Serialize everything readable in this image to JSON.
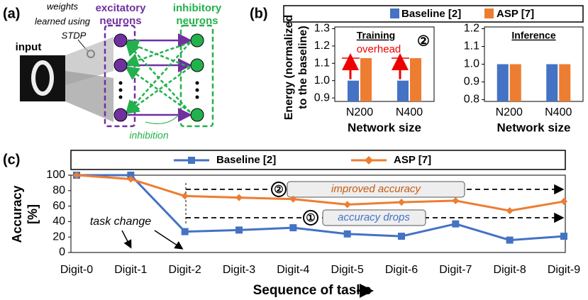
{
  "panel_labels": [
    "(a)",
    "(b)",
    "(c)"
  ],
  "diagram": {
    "weights_note": [
      "weights",
      "learned using",
      "STDP"
    ],
    "input": "input",
    "excitatory": [
      "excitatory",
      "neurons"
    ],
    "inhibitory": [
      "inhibitory",
      "neurons"
    ],
    "inhibition": "inhibition"
  },
  "chart_data": [
    {
      "type": "bar",
      "title": "Training",
      "ylabel": [
        "Energy (normalized",
        "to the baseline)"
      ],
      "xlabel": "Network size",
      "categories": [
        "N200",
        "N400"
      ],
      "series": [
        {
          "name": "Baseline [2]",
          "color": "#4472c4",
          "values": [
            1.0,
            1.0
          ]
        },
        {
          "name": "ASP [7]",
          "color": "#ed7d31",
          "values": [
            1.13,
            1.13
          ]
        }
      ],
      "ylim": [
        0.88,
        1.31
      ],
      "yticks": [
        0.9,
        {
          "value": 1,
          "label": "1.0"
        },
        1.1,
        1.2,
        1.3
      ],
      "annotations": [
        "overhead",
        "②"
      ]
    },
    {
      "type": "bar",
      "title": "Inference",
      "xlabel": "Network size",
      "categories": [
        "N200",
        "N400"
      ],
      "series": [
        {
          "name": "Baseline [2]",
          "color": "#4472c4",
          "values": [
            1.0,
            1.0
          ]
        },
        {
          "name": "ASP [7]",
          "color": "#ed7d31",
          "values": [
            1.0,
            1.0
          ]
        }
      ],
      "ylim": [
        0.79,
        1.21
      ],
      "yticks": [
        0.8,
        0.9,
        {
          "value": 1,
          "label": "1.0"
        },
        1.1,
        1.2
      ]
    },
    {
      "type": "line",
      "ylabel": [
        "Accuracy",
        "[%]"
      ],
      "xlabel": "Sequence of tasks",
      "categories": [
        "Digit-0",
        "Digit-1",
        "Digit-2",
        "Digit-3",
        "Digit-4",
        "Digit-5",
        "Digit-6",
        "Digit-7",
        "Digit-8",
        "Digit-9"
      ],
      "series": [
        {
          "name": "Baseline [2]",
          "color": "#4472c4",
          "values": [
            100,
            100,
            27,
            29,
            32,
            24,
            21,
            37,
            16,
            21
          ]
        },
        {
          "name": "ASP [7]",
          "color": "#ed7d31",
          "values": [
            100,
            95,
            73,
            71,
            69,
            62,
            65,
            67,
            54,
            66
          ]
        }
      ],
      "ylim": [
        0,
        100
      ],
      "yticks": [
        0,
        20,
        40,
        60,
        80,
        100
      ],
      "annotations": [
        "task change",
        "improved accuracy",
        "accuracy drops",
        "②",
        "①"
      ]
    }
  ]
}
